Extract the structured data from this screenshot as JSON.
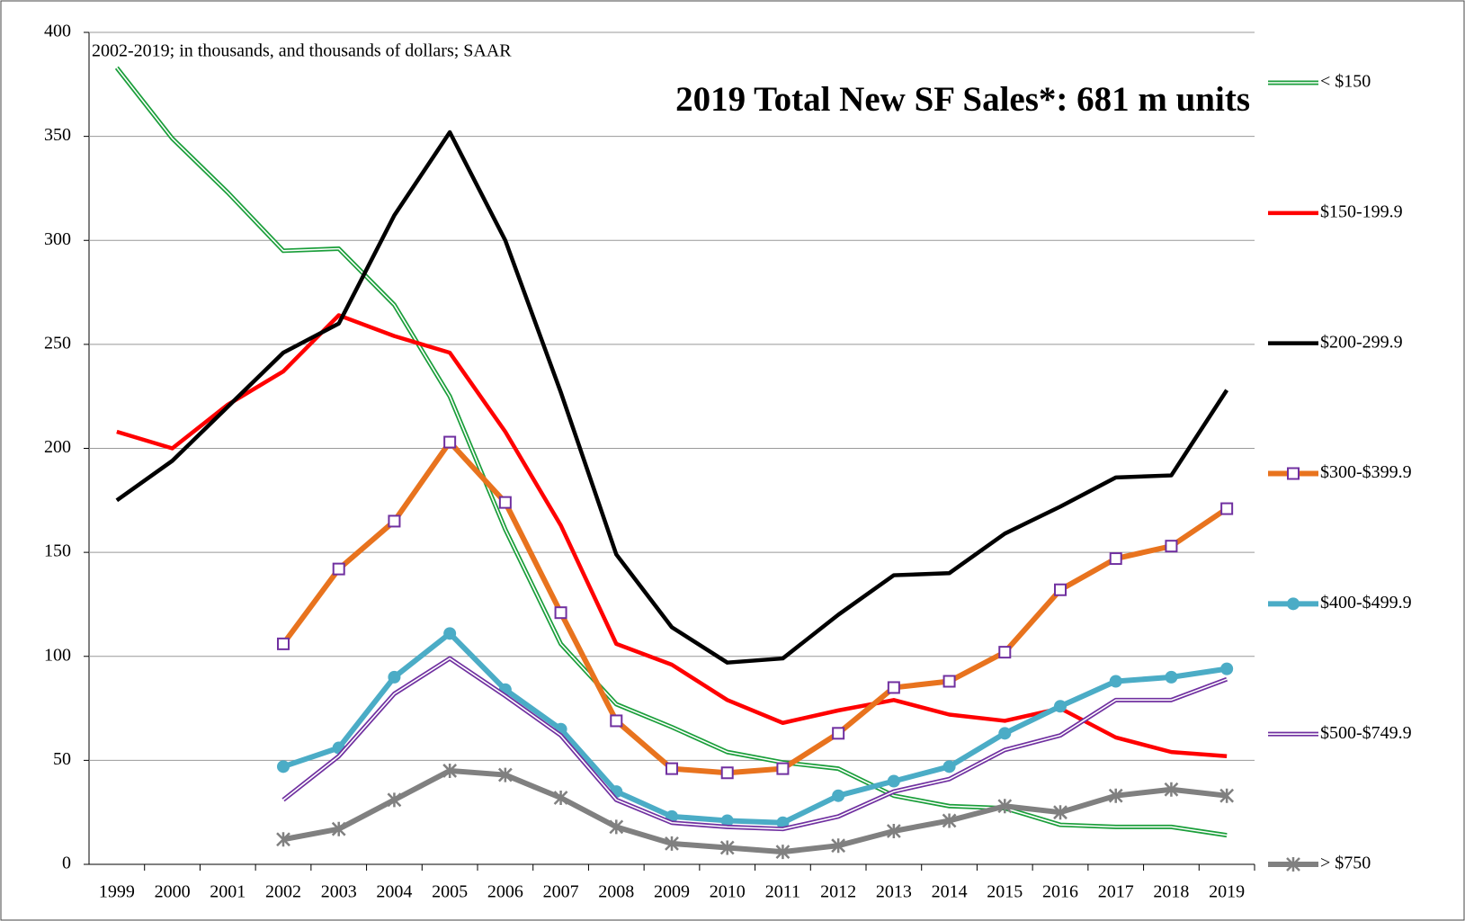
{
  "chart_data": {
    "type": "line",
    "title": "2019 Total New SF Sales*: 681 m units",
    "subtitle": "2002-2019; in thousands, and thousands of dollars; SAAR",
    "categories": [
      "1999",
      "2000",
      "2001",
      "2002",
      "2003",
      "2004",
      "2005",
      "2006",
      "2007",
      "2008",
      "2009",
      "2010",
      "2011",
      "2012",
      "2013",
      "2014",
      "2015",
      "2016",
      "2017",
      "2018",
      "2019"
    ],
    "ylim": [
      0,
      400
    ],
    "yticks": [
      0,
      50,
      100,
      150,
      200,
      250,
      300,
      350,
      400
    ],
    "grid": true,
    "legend": "right",
    "series": [
      {
        "name": "< $150",
        "color": "#1a9e3a",
        "line_style": "double",
        "values": [
          383,
          349,
          323,
          295,
          296,
          269,
          225,
          161,
          106,
          77,
          66,
          54,
          49,
          46,
          33,
          28,
          27,
          19,
          18,
          18,
          14
        ]
      },
      {
        "name": "$150-199.9",
        "color": "#ff0000",
        "values": [
          208,
          200,
          221,
          237,
          264,
          254,
          246,
          208,
          163,
          106,
          96,
          79,
          68,
          74,
          79,
          72,
          69,
          75,
          61,
          54,
          52
        ]
      },
      {
        "name": "$200-299.9",
        "color": "#000000",
        "values": [
          175,
          194,
          220,
          246,
          260,
          312,
          352,
          300,
          227,
          149,
          114,
          97,
          99,
          120,
          139,
          140,
          159,
          172,
          186,
          187,
          228
        ]
      },
      {
        "name": "$300-$399.9",
        "color": "#e8731e",
        "marker": "square",
        "marker_color": "#7030a0",
        "values": [
          null,
          null,
          null,
          106,
          142,
          165,
          203,
          174,
          121,
          69,
          46,
          44,
          46,
          63,
          85,
          88,
          102,
          132,
          147,
          153,
          171
        ]
      },
      {
        "name": "$400-$499.9",
        "color": "#4bacc6",
        "marker": "circle",
        "marker_color": "#4bacc6",
        "values": [
          null,
          null,
          null,
          47,
          56,
          90,
          111,
          84,
          65,
          35,
          23,
          21,
          20,
          33,
          40,
          47,
          63,
          76,
          88,
          90,
          94
        ]
      },
      {
        "name": "$500-$749.9",
        "color": "#7030a0",
        "line_style": "double",
        "values": [
          null,
          null,
          null,
          31,
          52,
          82,
          99,
          81,
          62,
          31,
          20,
          18,
          17,
          23,
          35,
          41,
          55,
          62,
          79,
          79,
          89
        ]
      },
      {
        "name": "> $750",
        "color": "#808080",
        "marker": "asterisk",
        "marker_color": "#808080",
        "values": [
          null,
          null,
          null,
          12,
          17,
          31,
          45,
          43,
          32,
          18,
          10,
          8,
          6,
          9,
          16,
          21,
          28,
          25,
          33,
          36,
          33
        ]
      }
    ]
  }
}
